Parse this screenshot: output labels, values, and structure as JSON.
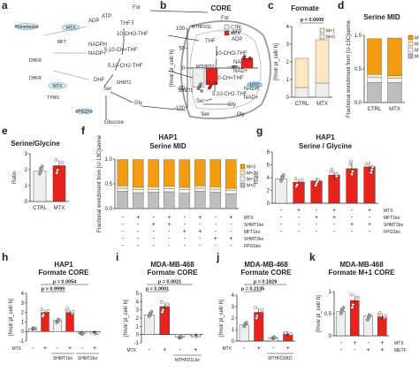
{
  "panels": [
    "a",
    "b",
    "c",
    "d",
    "e",
    "f",
    "g",
    "h",
    "i",
    "j",
    "k"
  ],
  "colors": {
    "orange": "#f39c12",
    "red": "#e8231b",
    "grey": "#bdbdbd",
    "dgrey": "#888888",
    "cream": "#fde7c2",
    "light": "#eeeeee",
    "enz": "#9fc8e6"
  },
  "diagram": {
    "metabolites": [
      "For",
      "ATP",
      "ADP",
      "THF",
      "10-CHO-THF",
      "NADPH",
      "NADP+",
      "5,10-CH=THF",
      "5,10-CH2-THF",
      "DHF",
      "Ser",
      "Gly",
      "Glucose",
      "THF",
      "ATP",
      "ADP",
      "10-CHO-THF",
      "NADH",
      "NAD+",
      "5,10-CH=THF",
      "5,10-CH2-THF",
      "Ser",
      "Gly",
      "NADH",
      "NAD+",
      "For"
    ],
    "enzymes": [
      "MTX",
      "Pemetrexed",
      "MFT",
      "DHFR",
      "MTX",
      "SHMT1",
      "PHGDH",
      "SHMT2",
      "MTHFD2",
      "MTHFD1L",
      "UTC",
      "DHFR",
      "TYMS"
    ],
    "enzyme_glyphs": [
      "ellipse-icon",
      "ellipse-icon",
      "ellipse-icon",
      "ellipse-icon",
      "ellipse-icon"
    ]
  },
  "chart_data": [
    {
      "id": "b",
      "type": "bar",
      "title": "CORE",
      "ylabel": "[fmol/ pl_cell/ h]",
      "categories": [
        "Ser",
        "Gly"
      ],
      "legend": [
        "CTRL",
        "MTX"
      ],
      "legend_position": "top-right",
      "ylim": [
        -100,
        100
      ],
      "y_ticks": [
        "100",
        "50",
        "0",
        "-50",
        "-100"
      ],
      "series": [
        {
          "name": "CTRL",
          "values": [
            -48,
            3
          ]
        },
        {
          "name": "MTX",
          "values": [
            -42,
            24
          ]
        }
      ]
    },
    {
      "id": "c",
      "type": "bar",
      "title": "Formate",
      "ylabel": "[fmol/ pl_cell/ h]",
      "categories": [
        "CTRL",
        "MTX"
      ],
      "stack_legend": [
        "M+1",
        "M+0"
      ],
      "legend_position": "top-right",
      "annotation": "p < 0.0009",
      "ylim": [
        0,
        4
      ],
      "y_ticks": [
        "0",
        "1",
        "2",
        "3",
        "4"
      ],
      "series": [
        {
          "name": "M+0",
          "values": [
            0.55,
            0.8
          ]
        },
        {
          "name": "M+1",
          "values": [
            1.65,
            2.45
          ]
        }
      ]
    },
    {
      "id": "d",
      "type": "bar",
      "title": "Serine MID",
      "ylabel": "Fractional enrichment from [U-13C]serine",
      "categories": [
        "CTRL",
        "MTX"
      ],
      "stack_legend": [
        "M+3",
        "M+2",
        "M+1",
        "M+0"
      ],
      "ylim": [
        0,
        1
      ],
      "y_ticks": [
        "0.0",
        "0.5",
        "1.0"
      ],
      "series": [
        {
          "name": "M+0",
          "values": [
            0.3,
            0.3
          ]
        },
        {
          "name": "M+1",
          "values": [
            0.07,
            0.06
          ]
        },
        {
          "name": "M+2",
          "values": [
            0.05,
            0.04
          ]
        },
        {
          "name": "M+3",
          "values": [
            0.53,
            0.56
          ]
        }
      ]
    },
    {
      "id": "e",
      "type": "bar",
      "title": "Serine/Glycine",
      "ylabel": "Ratio",
      "categories": [
        "CTRL",
        "MTX"
      ],
      "ylim": [
        0,
        3
      ],
      "y_ticks": [
        "0",
        "1",
        "2",
        "3"
      ],
      "series": [
        {
          "name": "ratio",
          "values": [
            1.9,
            2.25
          ]
        }
      ]
    },
    {
      "id": "f",
      "type": "bar",
      "title": "HAP1",
      "subtitle": "Serine MID",
      "ylabel": "Fractional enrichment from [U-13C]serine",
      "categories": [
        "1",
        "2",
        "3",
        "4",
        "5",
        "6",
        "7",
        "8"
      ],
      "stack_legend": [
        "M+3",
        "M+2",
        "M+1",
        "M+0"
      ],
      "legend_position": "right",
      "ylim": [
        0,
        1
      ],
      "y_ticks": [
        "0.0",
        "0.5",
        "1.0"
      ],
      "row_labels": [
        "MTX",
        "SHMT1ko",
        "MFT1ko",
        "SHMT2ko",
        "FPGSko"
      ],
      "rows": [
        [
          "-",
          "+",
          "-",
          "+",
          "-",
          "+",
          "-",
          "+"
        ],
        [
          "-",
          "-",
          "+",
          "+",
          "-",
          "-",
          "-",
          "-"
        ],
        [
          "-",
          "-",
          "-",
          "-",
          "+",
          "+",
          "-",
          "-"
        ],
        [
          "-",
          "-",
          "-",
          "-",
          "-",
          "-",
          "+",
          "+"
        ],
        [
          "-",
          "-",
          "-",
          "-",
          "-",
          "-",
          "-",
          "-"
        ]
      ],
      "series": [
        {
          "name": "M+0",
          "values": [
            0.35,
            0.32,
            0.33,
            0.34,
            0.31,
            0.35,
            0.33,
            0.3
          ]
        },
        {
          "name": "M+1",
          "values": [
            0.06,
            0.06,
            0.06,
            0.06,
            0.07,
            0.06,
            0.06,
            0.06
          ]
        },
        {
          "name": "M+2",
          "values": [
            0.05,
            0.05,
            0.05,
            0.05,
            0.05,
            0.05,
            0.05,
            0.05
          ]
        },
        {
          "name": "M+3",
          "values": [
            0.53,
            0.56,
            0.55,
            0.54,
            0.56,
            0.53,
            0.55,
            0.58
          ]
        }
      ]
    },
    {
      "id": "g",
      "type": "bar",
      "title": "HAP1",
      "subtitle": "Serine / Glycine",
      "ylabel": "Ratio",
      "categories": [
        "1",
        "2",
        "3",
        "4",
        "5",
        "6"
      ],
      "ylim": [
        0,
        8
      ],
      "y_ticks": [
        "0",
        "2",
        "4",
        "6",
        "8"
      ],
      "row_labels": [
        "MTX",
        "MFT1ko",
        "SHMT2ko",
        "FPGSko"
      ],
      "rows": [
        [
          "-",
          "+",
          "-",
          "+",
          "-",
          "+"
        ],
        [
          "-",
          "-",
          "+",
          "+",
          "-",
          "-"
        ],
        [
          "-",
          "-",
          "-",
          "-",
          "+",
          "+"
        ],
        [
          "-",
          "-",
          "-",
          "-",
          "-",
          "-"
        ]
      ],
      "series": [
        {
          "name": "ratio",
          "values": [
            3.8,
            3.3,
            3.5,
            4.4,
            5.4,
            5.7
          ]
        }
      ]
    },
    {
      "id": "h",
      "type": "bar",
      "title": "HAP1",
      "subtitle": "Formate CORE",
      "ylabel": "[fmol/ pl_cell/ h]",
      "categories": [
        "-",
        "+",
        "-",
        "+",
        "-",
        "+"
      ],
      "ylim": [
        -1,
        4
      ],
      "y_ticks": [
        "4",
        "3",
        "2",
        "1",
        "0",
        "-1"
      ],
      "row_labels": [
        "MTX"
      ],
      "group_labels": [
        "SHMT1kn",
        "SHMT2kn"
      ],
      "annotations": [
        "p > 0.9999",
        "p = 0.0054"
      ],
      "series": [
        {
          "name": "value",
          "values": [
            0.3,
            2.0,
            1.2,
            2.0,
            -0.2,
            -0.15
          ]
        }
      ]
    },
    {
      "id": "i",
      "type": "bar",
      "title": "MDA-MB-468",
      "subtitle": "Formate CORE",
      "ylabel": "[fmol/ pl_cell/ h]",
      "categories": [
        "-",
        "+",
        "-",
        "+"
      ],
      "ylim": [
        -1,
        5
      ],
      "y_ticks": [
        "5",
        "4",
        "3",
        "2",
        "1",
        "0",
        "-1"
      ],
      "row_labels": [
        "MTX"
      ],
      "group_labels": [
        "MTHFD1Lkn"
      ],
      "annotations": [
        "p = 0.0021",
        "p = 0.0001"
      ],
      "series": [
        {
          "name": "value",
          "values": [
            2.4,
            3.4,
            -0.3,
            -0.15
          ]
        }
      ]
    },
    {
      "id": "j",
      "type": "bar",
      "title": "MDA-MB-468",
      "subtitle": "Formate CORE",
      "ylabel": "[fmol/ pl_cell/ h]",
      "categories": [
        "-",
        "+",
        "-",
        "+"
      ],
      "ylim": [
        0,
        4
      ],
      "y_ticks": [
        "4",
        "3",
        "2",
        "1",
        "0"
      ],
      "row_labels": [
        "MTX"
      ],
      "group_labels": [
        "MTHFD2KD"
      ],
      "annotations": [
        "p = 0.1829",
        "p = 0.2135"
      ],
      "series": [
        {
          "name": "value",
          "values": [
            1.4,
            2.5,
            0.3,
            0.6
          ]
        }
      ]
    },
    {
      "id": "k",
      "type": "bar",
      "title": "MDA-MB-468",
      "subtitle": "Formate M+1 CORE",
      "ylabel": "[fmol/ pl_cell/ h]",
      "categories": [
        "-",
        "+",
        "-",
        "+"
      ],
      "ylim": [
        0,
        1
      ],
      "y_ticks": [
        "1",
        "0.5",
        "0"
      ],
      "row_labels": [
        "MTX",
        "METF"
      ],
      "rows": [
        [
          "-",
          "+",
          "-",
          "+"
        ],
        [
          "-",
          "-",
          "+",
          "+"
        ]
      ],
      "series": [
        {
          "name": "value",
          "values": [
            0.55,
            0.8,
            0.45,
            0.43
          ]
        }
      ]
    }
  ]
}
